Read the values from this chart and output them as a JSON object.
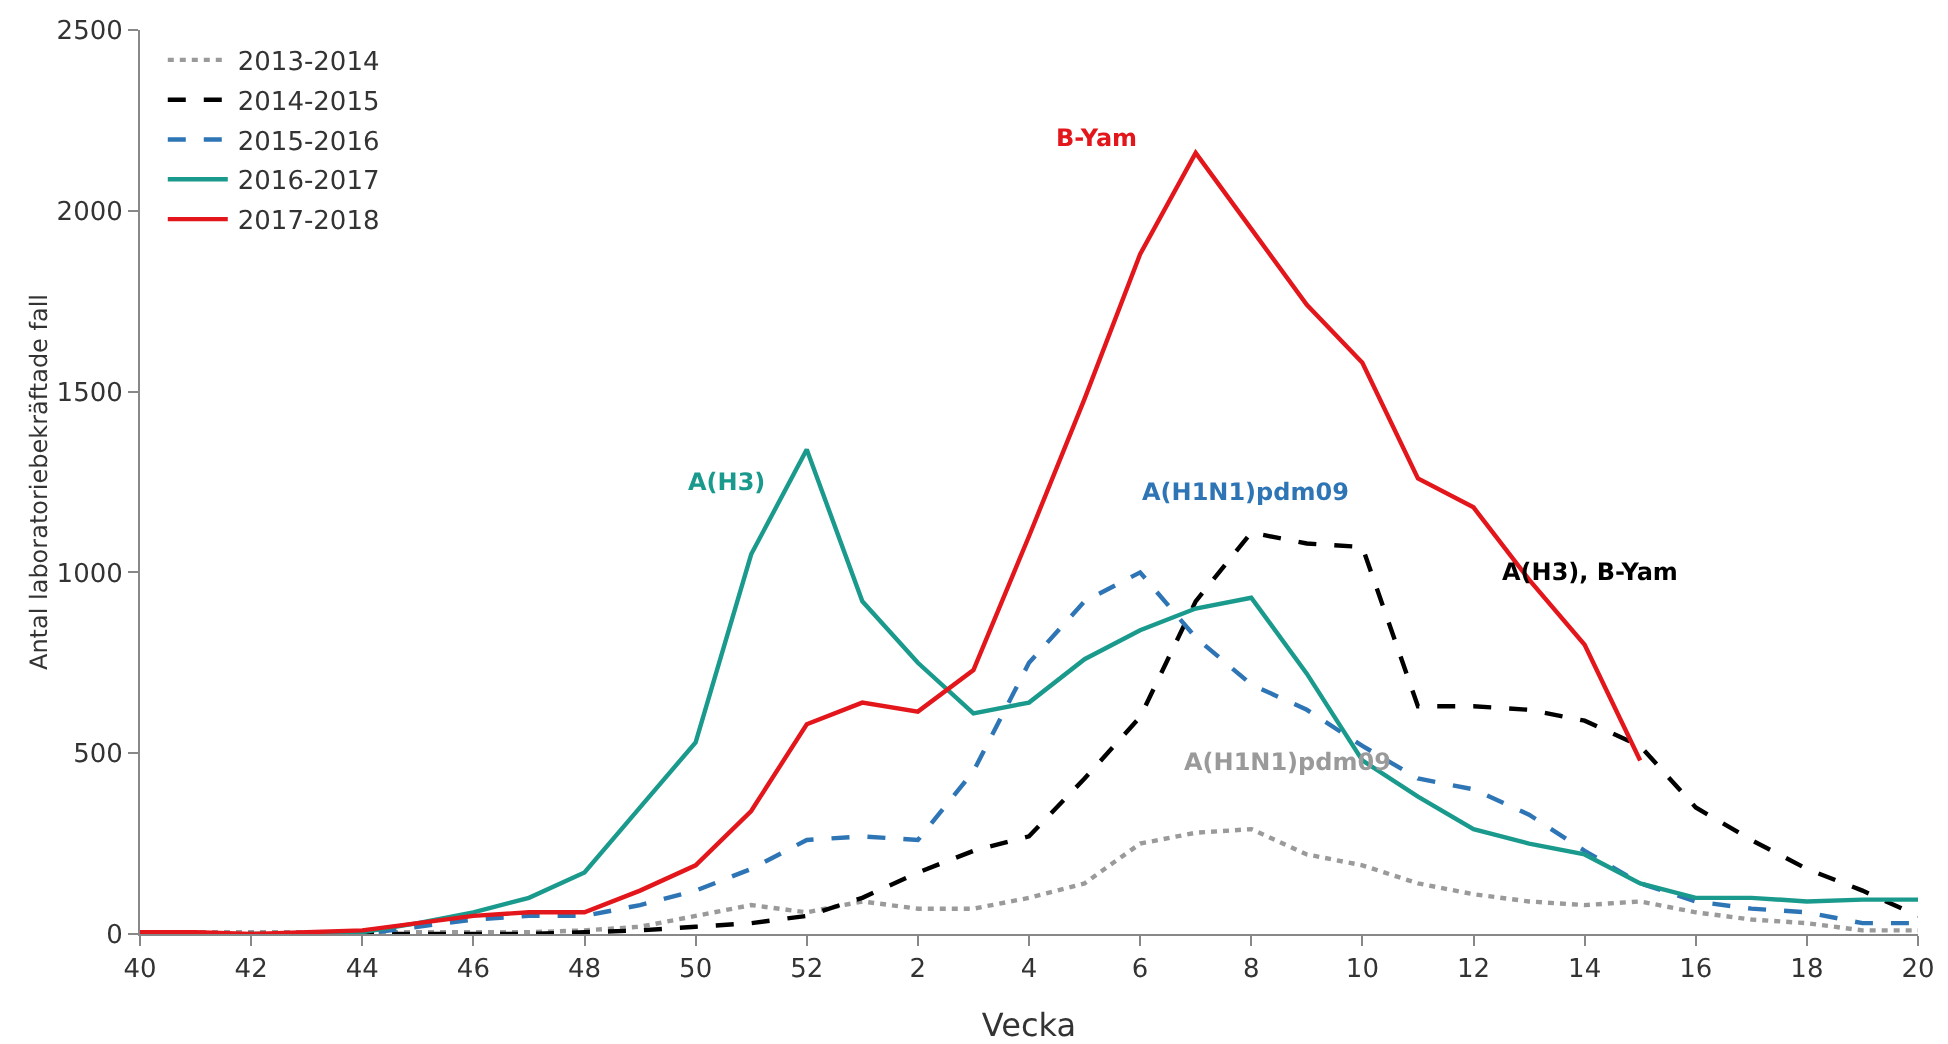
{
  "chart_data": {
    "type": "line",
    "xlabel": "Vecka",
    "ylabel": "Antal laboratoriebekräftade fall",
    "categories": [
      "40",
      null,
      "42",
      null,
      "44",
      null,
      "46",
      null,
      "48",
      null,
      "50",
      null,
      "52",
      null,
      "2",
      null,
      "4",
      null,
      "6",
      null,
      "8",
      null,
      "10",
      null,
      "12",
      null,
      "14",
      null,
      "16",
      null,
      "18",
      null,
      "20"
    ],
    "series": [
      {
        "name": "2013-2014",
        "color": "#9a9a9a",
        "line_style": "dotted",
        "values": [
          5,
          5,
          5,
          5,
          5,
          5,
          5,
          5,
          10,
          20,
          50,
          80,
          60,
          90,
          70,
          70,
          100,
          140,
          250,
          280,
          290,
          220,
          190,
          140,
          110,
          90,
          80,
          90,
          60,
          40,
          30,
          10,
          10
        ]
      },
      {
        "name": "2014-2015",
        "color": "#000000",
        "line_style": "dashed",
        "values": [
          0,
          0,
          0,
          0,
          0,
          0,
          0,
          0,
          5,
          10,
          20,
          30,
          50,
          100,
          170,
          230,
          270,
          430,
          600,
          920,
          1110,
          1080,
          1070,
          630,
          630,
          620,
          590,
          520,
          350,
          260,
          180,
          120,
          50
        ]
      },
      {
        "name": "2015-2016",
        "color": "#2e75b6",
        "line_style": "dashed",
        "values": [
          null,
          null,
          null,
          0,
          0,
          20,
          40,
          50,
          50,
          80,
          120,
          180,
          260,
          270,
          260,
          450,
          750,
          920,
          1000,
          820,
          690,
          620,
          520,
          430,
          400,
          330,
          230,
          140,
          90,
          70,
          60,
          30,
          30
        ]
      },
      {
        "name": "2016-2017",
        "color": "#1a9a8c",
        "line_style": "solid",
        "values": [
          null,
          null,
          null,
          0,
          5,
          30,
          60,
          100,
          170,
          350,
          530,
          1050,
          1340,
          920,
          750,
          610,
          640,
          760,
          840,
          900,
          930,
          720,
          480,
          380,
          290,
          250,
          220,
          140,
          100,
          100,
          90,
          95,
          95
        ]
      },
      {
        "name": "2017-2018",
        "color": "#e3161b",
        "line_style": "solid",
        "values": [
          5,
          5,
          0,
          5,
          10,
          30,
          50,
          60,
          60,
          120,
          190,
          340,
          580,
          640,
          615,
          730,
          1100,
          1480,
          1880,
          2160,
          1950,
          1740,
          1580,
          1260,
          1180,
          980,
          800,
          480,
          null,
          null,
          null,
          null,
          null
        ]
      }
    ],
    "ylim": [
      0,
      2500
    ],
    "yticks": [
      0,
      500,
      1000,
      1500,
      2000,
      2500
    ],
    "grid": false,
    "legend": "top left",
    "marker": "none",
    "annotations": [
      "A(H3)",
      "B-Yam",
      "A(H1N1)pdm09",
      "A(H3), B-Yam",
      "A(H1N1)pdm09"
    ]
  }
}
